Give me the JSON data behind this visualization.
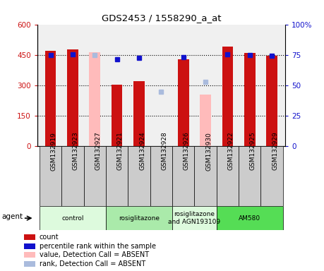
{
  "title": "GDS2453 / 1558290_a_at",
  "samples": [
    "GSM132919",
    "GSM132923",
    "GSM132927",
    "GSM132921",
    "GSM132924",
    "GSM132928",
    "GSM132926",
    "GSM132930",
    "GSM132922",
    "GSM132925",
    "GSM132929"
  ],
  "count_present": [
    470,
    478,
    null,
    305,
    320,
    null,
    430,
    null,
    490,
    458,
    447
  ],
  "count_absent": [
    null,
    null,
    462,
    null,
    null,
    null,
    null,
    255,
    null,
    null,
    null
  ],
  "rank_present": [
    450,
    453,
    null,
    430,
    435,
    null,
    440,
    null,
    451,
    450,
    447
  ],
  "rank_absent": [
    null,
    null,
    450,
    null,
    null,
    268,
    null,
    318,
    null,
    null,
    null
  ],
  "ylim_left": [
    0,
    600
  ],
  "ylim_right": [
    0,
    100
  ],
  "yticks_left": [
    0,
    150,
    300,
    450,
    600
  ],
  "yticks_right": [
    0,
    25,
    50,
    75,
    100
  ],
  "yticklabels_left": [
    "0",
    "150",
    "300",
    "450",
    "600"
  ],
  "yticklabels_right": [
    "0",
    "25",
    "50",
    "75",
    "100%"
  ],
  "groups": [
    {
      "label": "control",
      "start": 0,
      "end": 3,
      "color": "#ddfadd"
    },
    {
      "label": "rosiglitazone",
      "start": 3,
      "end": 6,
      "color": "#aaeaaa"
    },
    {
      "label": "rosiglitazone\nand AGN193109",
      "start": 6,
      "end": 8,
      "color": "#ddfadd"
    },
    {
      "label": "AM580",
      "start": 8,
      "end": 11,
      "color": "#55dd55"
    }
  ],
  "bar_width": 0.5,
  "count_color": "#cc1111",
  "absent_bar_color": "#ffbbbb",
  "rank_present_color": "#1111cc",
  "rank_absent_color": "#aabbdd",
  "xlabel_bg": "#cccccc",
  "plot_bg": "#f0f0f0",
  "legend_items": [
    {
      "label": "count",
      "color": "#cc1111"
    },
    {
      "label": "percentile rank within the sample",
      "color": "#1111cc"
    },
    {
      "label": "value, Detection Call = ABSENT",
      "color": "#ffbbbb"
    },
    {
      "label": "rank, Detection Call = ABSENT",
      "color": "#aabbdd"
    }
  ]
}
